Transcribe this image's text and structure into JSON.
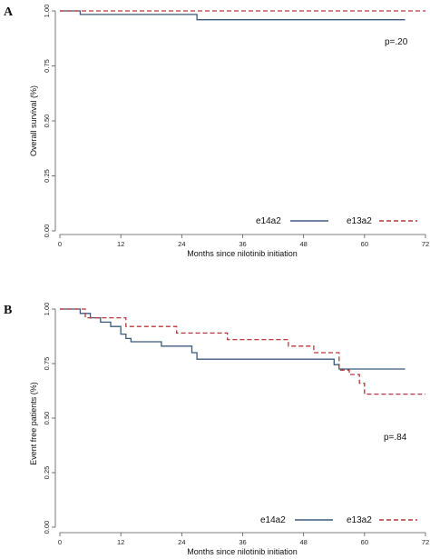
{
  "chart_data": [
    {
      "type": "line",
      "panel": "A",
      "xlabel": "Months since nilotinib initiation",
      "ylabel": "Overall survival (%)",
      "xlim": [
        0,
        72
      ],
      "ylim": [
        0,
        1
      ],
      "xticks": [
        0,
        12,
        24,
        36,
        48,
        60,
        72
      ],
      "yticks": [
        0,
        0.25,
        0.5,
        0.75,
        1
      ],
      "ytick_labels": [
        "0.00",
        "0.25",
        "0.50",
        "0.75",
        "1.00"
      ],
      "annotation": "p=.20",
      "grid": false,
      "legend_position": "bottom-right",
      "series": [
        {
          "name": "e14a2",
          "color": "#3b5b7a",
          "dash": "solid",
          "x": [
            0,
            4,
            4,
            27,
            27,
            68
          ],
          "y": [
            1,
            1,
            0.984,
            0.984,
            0.96,
            0.96
          ]
        },
        {
          "name": "e13a2",
          "color": "#b5383b",
          "dash": "dashed",
          "x": [
            0,
            72
          ],
          "y": [
            1,
            1
          ]
        }
      ]
    },
    {
      "type": "line",
      "panel": "B",
      "xlabel": "Months since nilotinib initiation",
      "ylabel": "Event free patients (%)",
      "xlim": [
        0,
        72
      ],
      "ylim": [
        0,
        1
      ],
      "xticks": [
        0,
        12,
        24,
        36,
        48,
        60,
        72
      ],
      "yticks": [
        0,
        0.25,
        0.5,
        0.75,
        1
      ],
      "ytick_labels": [
        "0.00",
        "0.25",
        "0.50",
        "0.75",
        "1.00"
      ],
      "annotation": "p=.84",
      "grid": false,
      "legend_position": "bottom-right",
      "series": [
        {
          "name": "e14a2",
          "color": "#3b5b7a",
          "dash": "solid",
          "x": [
            0,
            4,
            4,
            6,
            6,
            8,
            8,
            10,
            10,
            12,
            12,
            13,
            13,
            14,
            14,
            20,
            20,
            26,
            26,
            27,
            27,
            54,
            54,
            55,
            55,
            68
          ],
          "y": [
            1,
            1,
            0.98,
            0.98,
            0.96,
            0.96,
            0.94,
            0.94,
            0.92,
            0.92,
            0.885,
            0.885,
            0.865,
            0.865,
            0.85,
            0.85,
            0.83,
            0.83,
            0.8,
            0.8,
            0.77,
            0.77,
            0.745,
            0.745,
            0.725,
            0.725
          ]
        },
        {
          "name": "e13a2",
          "color": "#b5383b",
          "dash": "dashed",
          "x": [
            0,
            5,
            5,
            13,
            13,
            23,
            23,
            33,
            33,
            45,
            45,
            50,
            50,
            55,
            55,
            57,
            57,
            59,
            59,
            60,
            60,
            72
          ],
          "y": [
            1,
            1,
            0.96,
            0.96,
            0.92,
            0.92,
            0.89,
            0.89,
            0.86,
            0.86,
            0.83,
            0.83,
            0.8,
            0.8,
            0.72,
            0.72,
            0.7,
            0.7,
            0.66,
            0.66,
            0.61,
            0.61
          ]
        }
      ]
    }
  ]
}
